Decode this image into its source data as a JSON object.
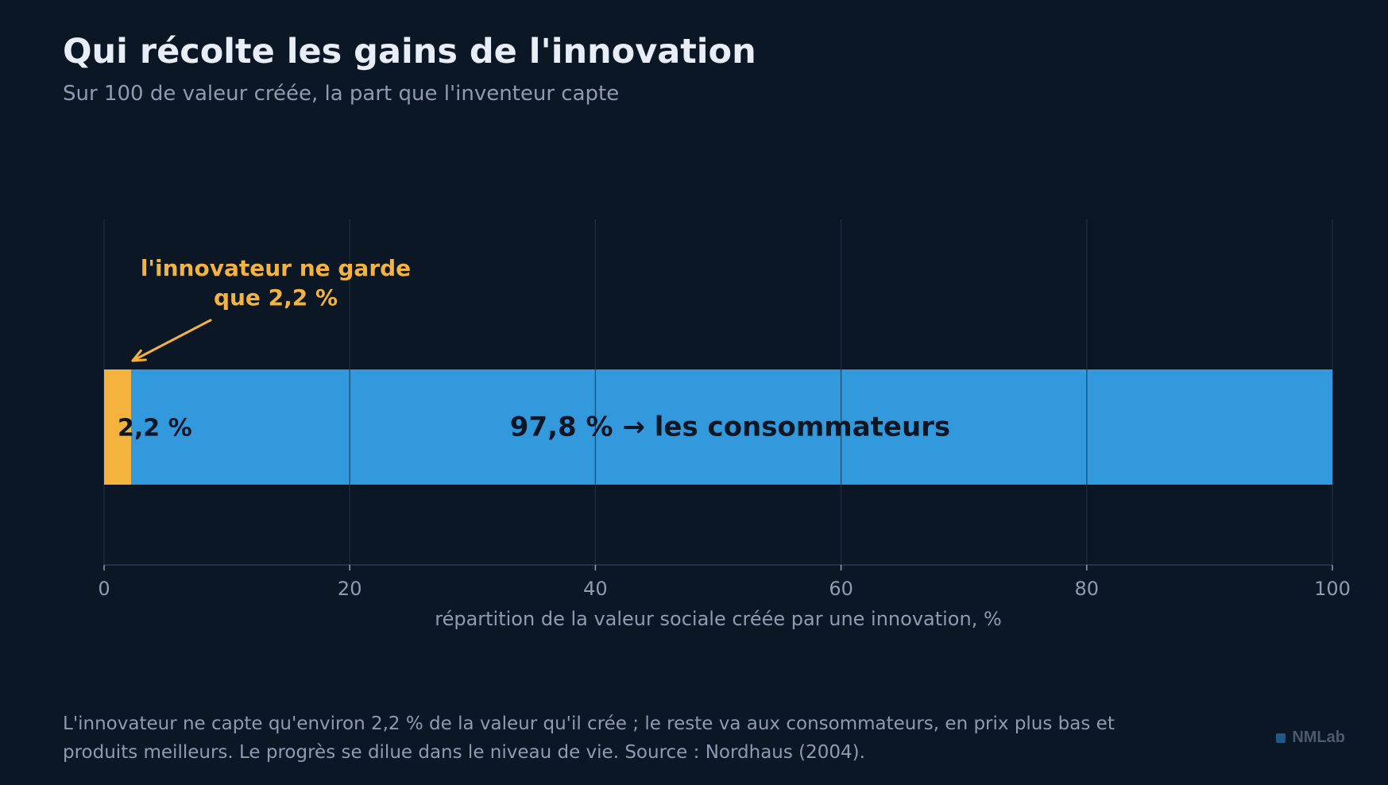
{
  "title": "Qui récolte les gains de l'innovation",
  "subtitle": "Sur 100 de valeur créée, la part que l'inventeur capte",
  "chart_data": {
    "type": "bar",
    "orientation": "horizontal-stacked",
    "xlabel": "répartition de la valeur sociale créée par une innovation, %",
    "xlim": [
      0,
      100
    ],
    "xticks": [
      0,
      20,
      40,
      60,
      80,
      100
    ],
    "xtick_labels": [
      "0",
      "20",
      "40",
      "60",
      "80",
      "100"
    ],
    "grid": true,
    "series": [
      {
        "value": 2.2,
        "label": "2,2 %",
        "color": "#f3b33d"
      },
      {
        "value": 97.8,
        "label": "97,8 % → les consommateurs",
        "color": "#3399dd"
      }
    ],
    "annotation": {
      "lines": [
        "l'innovateur ne garde",
        "que 2,2 %"
      ],
      "points_to": 2.2,
      "color": "#f3b33d"
    }
  },
  "footer": {
    "caption": "L'innovateur ne capte qu'environ 2,2 % de la valeur qu'il crée ; le reste va aux consommateurs, en prix plus bas et produits meilleurs. Le progrès se dilue dans le niveau de vie. Source : Nordhaus (2004).",
    "brand": "NMLab"
  },
  "colors": {
    "background": "#0c1726",
    "title": "#e8eef7",
    "muted": "#8d9cb0",
    "grid": "#1f2d40",
    "bar_text": "#0c1726"
  }
}
